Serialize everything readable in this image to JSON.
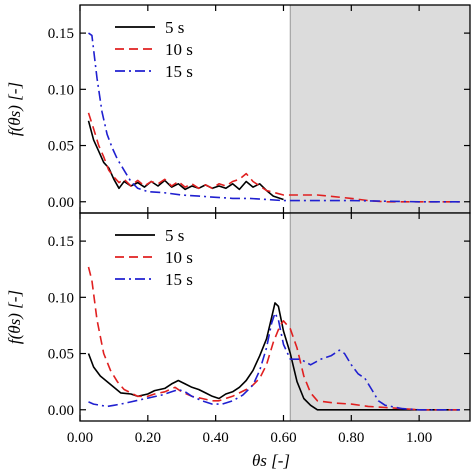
{
  "chart_data": [
    {
      "type": "line",
      "panel": "top",
      "xlabel": "",
      "ylabel": "f(θs) [-]",
      "xlim": [
        0.0,
        1.15
      ],
      "ylim": [
        -0.01,
        0.175
      ],
      "x_ticks": [
        "0.00",
        "0.20",
        "0.40",
        "0.60",
        "0.80",
        "1.00"
      ],
      "y_ticks": [
        "0.00",
        "0.05",
        "0.10",
        "0.15"
      ],
      "y_tick_values": [
        0.0,
        0.05,
        0.1,
        0.15
      ],
      "shaded_region": [
        0.62,
        1.15
      ],
      "shaded_color": "#dcdcdc",
      "legend_position": "top-left",
      "series": [
        {
          "name": "5 s",
          "color": "#000000",
          "dash": "solid",
          "points": [
            [
              0.025,
              0.072
            ],
            [
              0.04,
              0.055
            ],
            [
              0.055,
              0.045
            ],
            [
              0.07,
              0.035
            ],
            [
              0.085,
              0.03
            ],
            [
              0.1,
              0.02
            ],
            [
              0.115,
              0.012
            ],
            [
              0.13,
              0.018
            ],
            [
              0.15,
              0.014
            ],
            [
              0.17,
              0.017
            ],
            [
              0.19,
              0.013
            ],
            [
              0.21,
              0.018
            ],
            [
              0.23,
              0.014
            ],
            [
              0.25,
              0.019
            ],
            [
              0.27,
              0.013
            ],
            [
              0.29,
              0.016
            ],
            [
              0.31,
              0.011
            ],
            [
              0.33,
              0.014
            ],
            [
              0.35,
              0.012
            ],
            [
              0.37,
              0.015
            ],
            [
              0.39,
              0.012
            ],
            [
              0.41,
              0.014
            ],
            [
              0.43,
              0.012
            ],
            [
              0.45,
              0.016
            ],
            [
              0.47,
              0.011
            ],
            [
              0.49,
              0.018
            ],
            [
              0.51,
              0.013
            ],
            [
              0.53,
              0.016
            ],
            [
              0.55,
              0.01
            ],
            [
              0.57,
              0.005
            ],
            [
              0.6,
              0.002
            ]
          ]
        },
        {
          "name": "10 s",
          "color": "#e02020",
          "dash": "dashed",
          "points": [
            [
              0.025,
              0.079
            ],
            [
              0.04,
              0.065
            ],
            [
              0.055,
              0.05
            ],
            [
              0.07,
              0.04
            ],
            [
              0.085,
              0.028
            ],
            [
              0.1,
              0.022
            ],
            [
              0.115,
              0.017
            ],
            [
              0.13,
              0.02
            ],
            [
              0.15,
              0.014
            ],
            [
              0.17,
              0.019
            ],
            [
              0.19,
              0.014
            ],
            [
              0.21,
              0.018
            ],
            [
              0.23,
              0.016
            ],
            [
              0.25,
              0.02
            ],
            [
              0.27,
              0.014
            ],
            [
              0.29,
              0.018
            ],
            [
              0.31,
              0.013
            ],
            [
              0.33,
              0.016
            ],
            [
              0.35,
              0.012
            ],
            [
              0.37,
              0.015
            ],
            [
              0.39,
              0.012
            ],
            [
              0.41,
              0.016
            ],
            [
              0.43,
              0.014
            ],
            [
              0.45,
              0.018
            ],
            [
              0.47,
              0.02
            ],
            [
              0.49,
              0.025
            ],
            [
              0.51,
              0.018
            ],
            [
              0.55,
              0.01
            ],
            [
              0.6,
              0.006
            ],
            [
              0.7,
              0.006
            ],
            [
              0.8,
              0.003
            ],
            [
              0.85,
              0.001
            ],
            [
              0.9,
              0.0
            ],
            [
              1.0,
              0.0
            ],
            [
              1.12,
              0.0
            ]
          ]
        },
        {
          "name": "15 s",
          "color": "#2020d0",
          "dash": "dashdot",
          "points": [
            [
              0.025,
              0.15
            ],
            [
              0.035,
              0.148
            ],
            [
              0.05,
              0.11
            ],
            [
              0.065,
              0.08
            ],
            [
              0.08,
              0.06
            ],
            [
              0.095,
              0.048
            ],
            [
              0.11,
              0.038
            ],
            [
              0.13,
              0.028
            ],
            [
              0.15,
              0.018
            ],
            [
              0.17,
              0.012
            ],
            [
              0.2,
              0.009
            ],
            [
              0.25,
              0.008
            ],
            [
              0.3,
              0.006
            ],
            [
              0.35,
              0.005
            ],
            [
              0.4,
              0.004
            ],
            [
              0.45,
              0.003
            ],
            [
              0.5,
              0.003
            ],
            [
              0.55,
              0.002
            ],
            [
              0.6,
              0.001
            ],
            [
              0.8,
              0.001
            ],
            [
              1.0,
              0.0
            ],
            [
              1.12,
              0.0
            ]
          ]
        }
      ]
    },
    {
      "type": "line",
      "panel": "bottom",
      "xlabel": "θs [-]",
      "ylabel": "f(θs) [-]",
      "xlim": [
        0.0,
        1.15
      ],
      "ylim": [
        -0.01,
        0.175
      ],
      "x_ticks": [
        "0.00",
        "0.20",
        "0.40",
        "0.60",
        "0.80",
        "1.00"
      ],
      "x_tick_values": [
        0.0,
        0.2,
        0.4,
        0.6,
        0.8,
        1.0
      ],
      "y_ticks": [
        "0.00",
        "0.05",
        "0.10",
        "0.15"
      ],
      "y_tick_values": [
        0.0,
        0.05,
        0.1,
        0.15
      ],
      "shaded_region": [
        0.62,
        1.15
      ],
      "shaded_color": "#dcdcdc",
      "legend_position": "top-left",
      "series": [
        {
          "name": "5 s",
          "color": "#000000",
          "dash": "solid",
          "points": [
            [
              0.025,
              0.05
            ],
            [
              0.04,
              0.038
            ],
            [
              0.06,
              0.03
            ],
            [
              0.08,
              0.025
            ],
            [
              0.1,
              0.02
            ],
            [
              0.12,
              0.015
            ],
            [
              0.15,
              0.014
            ],
            [
              0.17,
              0.012
            ],
            [
              0.2,
              0.014
            ],
            [
              0.22,
              0.017
            ],
            [
              0.25,
              0.019
            ],
            [
              0.27,
              0.023
            ],
            [
              0.29,
              0.026
            ],
            [
              0.31,
              0.023
            ],
            [
              0.33,
              0.02
            ],
            [
              0.35,
              0.018
            ],
            [
              0.37,
              0.015
            ],
            [
              0.39,
              0.012
            ],
            [
              0.41,
              0.01
            ],
            [
              0.43,
              0.014
            ],
            [
              0.45,
              0.016
            ],
            [
              0.47,
              0.02
            ],
            [
              0.49,
              0.026
            ],
            [
              0.51,
              0.035
            ],
            [
              0.53,
              0.048
            ],
            [
              0.55,
              0.063
            ],
            [
              0.565,
              0.082
            ],
            [
              0.575,
              0.095
            ],
            [
              0.585,
              0.092
            ],
            [
              0.6,
              0.07
            ],
            [
              0.62,
              0.05
            ],
            [
              0.64,
              0.025
            ],
            [
              0.66,
              0.01
            ],
            [
              0.68,
              0.004
            ],
            [
              0.7,
              0.0
            ],
            [
              0.75,
              0.0
            ],
            [
              0.8,
              0.0
            ],
            [
              0.9,
              0.0
            ],
            [
              1.0,
              0.0
            ],
            [
              1.12,
              0.0
            ]
          ]
        },
        {
          "name": "10 s",
          "color": "#e02020",
          "dash": "dashed",
          "points": [
            [
              0.025,
              0.127
            ],
            [
              0.035,
              0.115
            ],
            [
              0.05,
              0.08
            ],
            [
              0.07,
              0.05
            ],
            [
              0.09,
              0.035
            ],
            [
              0.11,
              0.025
            ],
            [
              0.13,
              0.018
            ],
            [
              0.15,
              0.015
            ],
            [
              0.17,
              0.012
            ],
            [
              0.2,
              0.012
            ],
            [
              0.22,
              0.014
            ],
            [
              0.25,
              0.016
            ],
            [
              0.28,
              0.02
            ],
            [
              0.3,
              0.016
            ],
            [
              0.33,
              0.012
            ],
            [
              0.36,
              0.01
            ],
            [
              0.39,
              0.008
            ],
            [
              0.41,
              0.008
            ],
            [
              0.43,
              0.01
            ],
            [
              0.45,
              0.012
            ],
            [
              0.47,
              0.015
            ],
            [
              0.49,
              0.018
            ],
            [
              0.51,
              0.022
            ],
            [
              0.53,
              0.028
            ],
            [
              0.55,
              0.04
            ],
            [
              0.57,
              0.06
            ],
            [
              0.59,
              0.075
            ],
            [
              0.6,
              0.079
            ],
            [
              0.62,
              0.072
            ],
            [
              0.64,
              0.055
            ],
            [
              0.66,
              0.03
            ],
            [
              0.68,
              0.015
            ],
            [
              0.7,
              0.008
            ],
            [
              0.75,
              0.006
            ],
            [
              0.8,
              0.005
            ],
            [
              0.85,
              0.003
            ],
            [
              0.9,
              0.002
            ],
            [
              0.95,
              0.001
            ],
            [
              1.0,
              0.0
            ],
            [
              1.12,
              0.0
            ]
          ]
        },
        {
          "name": "15 s",
          "color": "#2020d0",
          "dash": "dashdot",
          "points": [
            [
              0.025,
              0.007
            ],
            [
              0.04,
              0.005
            ],
            [
              0.06,
              0.004
            ],
            [
              0.08,
              0.003
            ],
            [
              0.1,
              0.004
            ],
            [
              0.12,
              0.005
            ],
            [
              0.15,
              0.007
            ],
            [
              0.18,
              0.009
            ],
            [
              0.21,
              0.011
            ],
            [
              0.24,
              0.013
            ],
            [
              0.27,
              0.016
            ],
            [
              0.29,
              0.018
            ],
            [
              0.31,
              0.016
            ],
            [
              0.33,
              0.012
            ],
            [
              0.36,
              0.008
            ],
            [
              0.39,
              0.005
            ],
            [
              0.42,
              0.005
            ],
            [
              0.45,
              0.008
            ],
            [
              0.48,
              0.013
            ],
            [
              0.51,
              0.022
            ],
            [
              0.53,
              0.035
            ],
            [
              0.55,
              0.055
            ],
            [
              0.565,
              0.077
            ],
            [
              0.575,
              0.086
            ],
            [
              0.585,
              0.08
            ],
            [
              0.6,
              0.058
            ],
            [
              0.62,
              0.045
            ],
            [
              0.65,
              0.045
            ],
            [
              0.68,
              0.04
            ],
            [
              0.71,
              0.045
            ],
            [
              0.74,
              0.048
            ],
            [
              0.765,
              0.053
            ],
            [
              0.78,
              0.05
            ],
            [
              0.8,
              0.04
            ],
            [
              0.82,
              0.032
            ],
            [
              0.84,
              0.028
            ],
            [
              0.86,
              0.018
            ],
            [
              0.88,
              0.008
            ],
            [
              0.9,
              0.004
            ],
            [
              0.95,
              0.001
            ],
            [
              1.0,
              0.0
            ],
            [
              1.12,
              0.0
            ]
          ]
        }
      ]
    }
  ]
}
